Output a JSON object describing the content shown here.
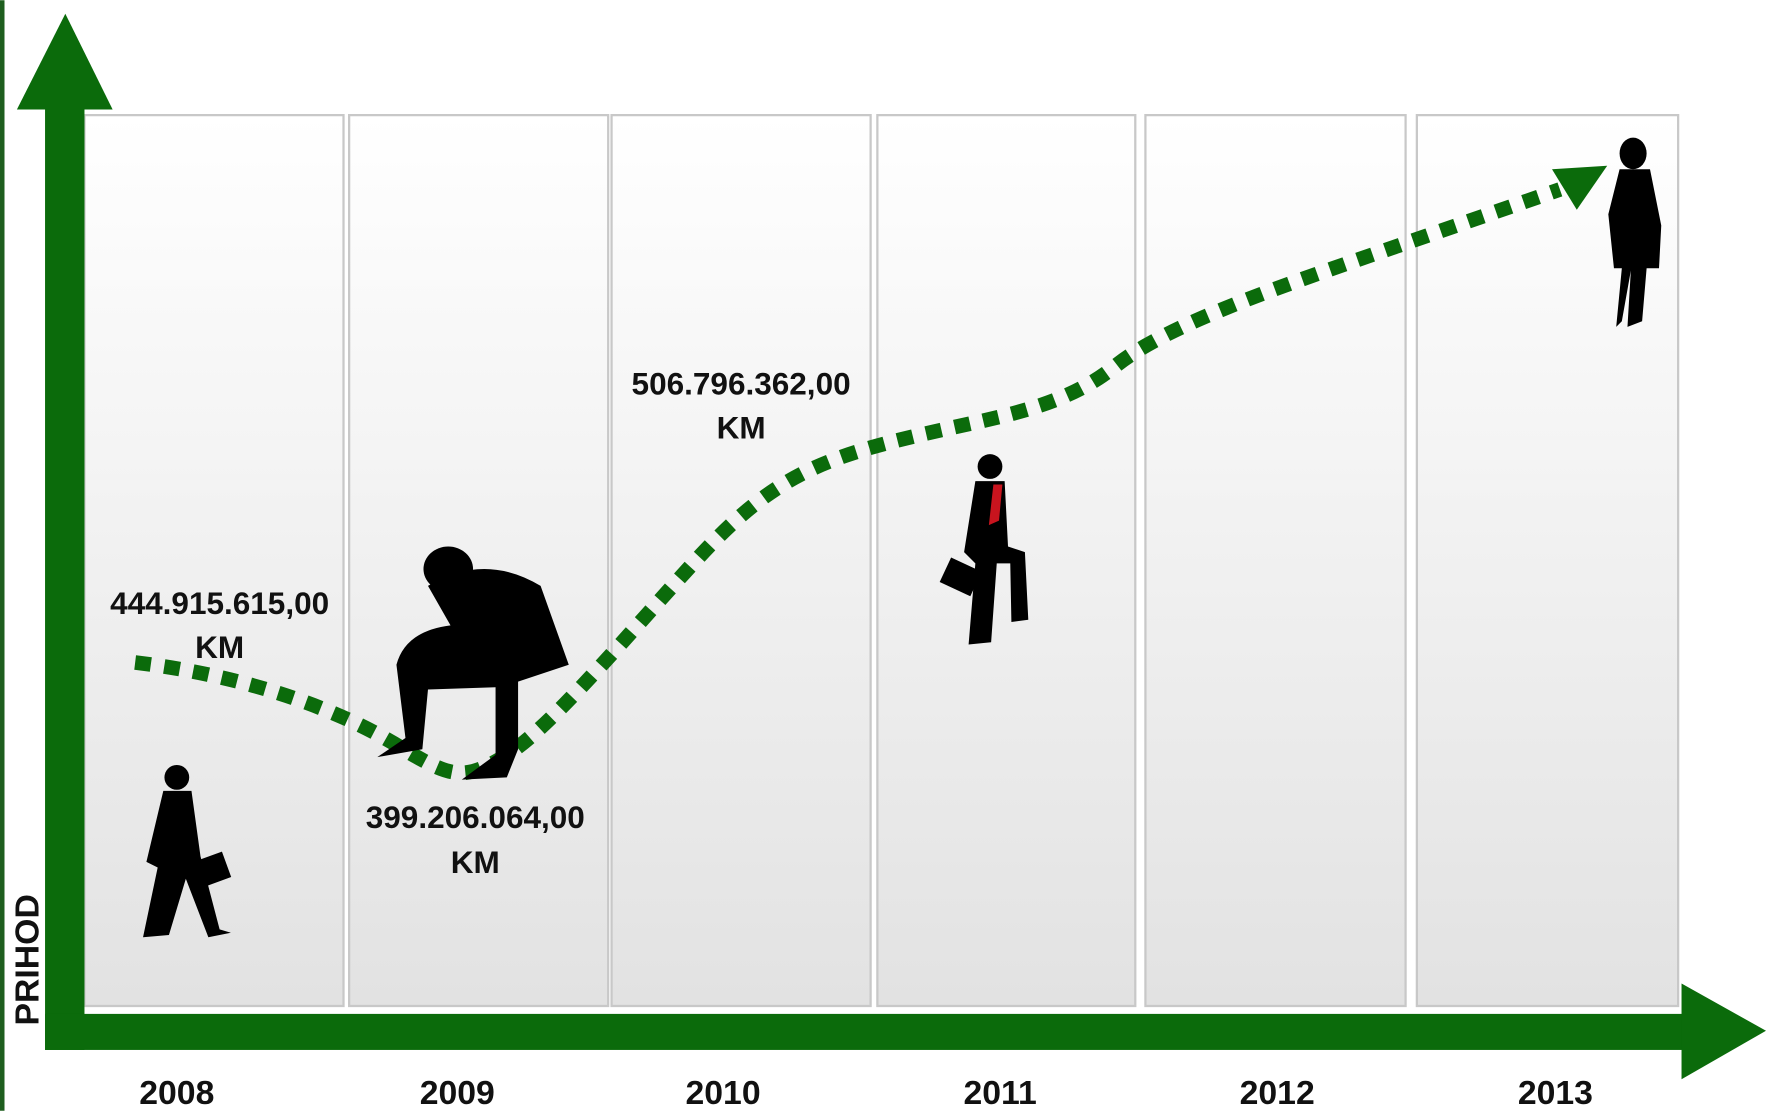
{
  "y_axis_label": "PRIHOD",
  "years": [
    "2008",
    "2009",
    "2010",
    "2011",
    "2012",
    "2013"
  ],
  "annotations": [
    {
      "text": "444.915.615,00",
      "unit": "KM"
    },
    {
      "text": "399.206.064,00",
      "unit": "KM"
    },
    {
      "text": "506.796.362,00",
      "unit": "KM"
    }
  ]
}
